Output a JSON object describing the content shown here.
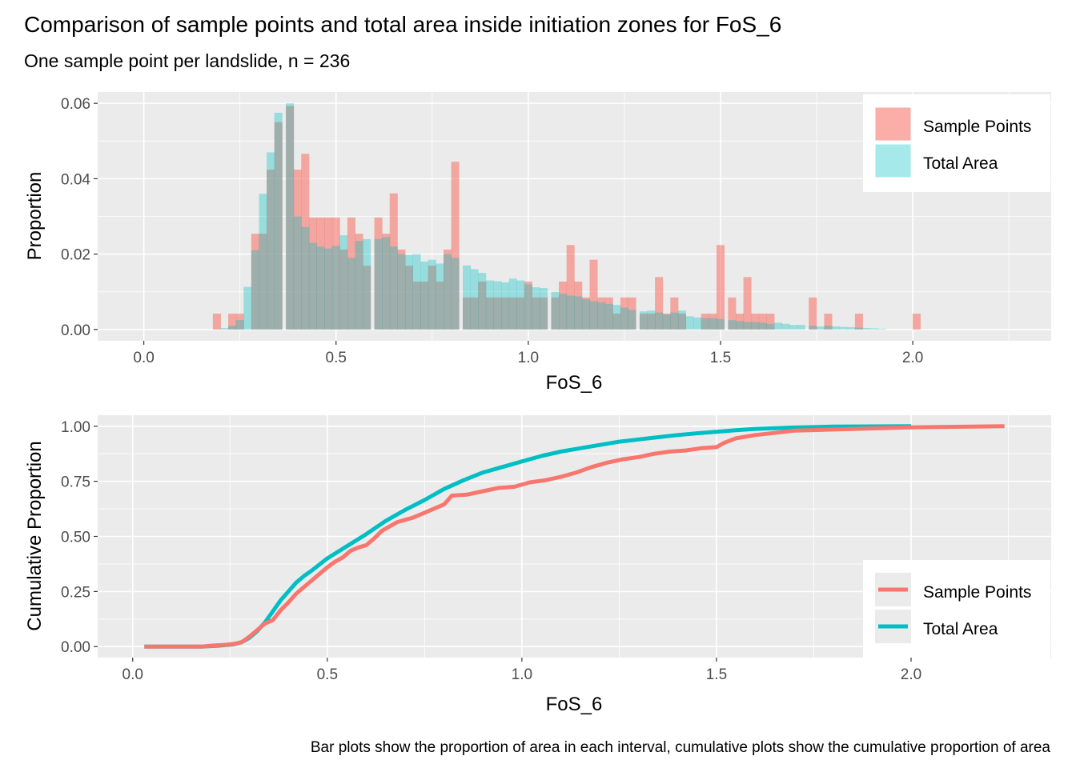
{
  "title": "Comparison of sample points and total area inside initiation zones for FoS_6",
  "subtitle": "One sample point per landslide, n = 236",
  "caption": "Bar plots show the proportion of area in each interval, cumulative plots show the cumulative proportion of area",
  "colors": {
    "sample_points": "#F8766D",
    "total_area": "#00BFC4",
    "panel_bg": "#EBEBEB"
  },
  "chart_data": [
    {
      "type": "bar",
      "id": "histogram",
      "xlabel": "FoS_6",
      "ylabel": "Proportion",
      "xlim": [
        -0.12,
        2.36
      ],
      "ylim": [
        -0.003,
        0.063
      ],
      "x_ticks": [
        0.0,
        0.5,
        1.0,
        1.5,
        2.0
      ],
      "x_tick_labels": [
        "0.0",
        "0.5",
        "1.0",
        "1.5",
        "2.0"
      ],
      "y_ticks": [
        0.0,
        0.02,
        0.04,
        0.06
      ],
      "y_tick_labels": [
        "0.00",
        "0.02",
        "0.04",
        "0.06"
      ],
      "grid": true,
      "legend_position": "top-right",
      "bin_width": 0.0209,
      "series": [
        {
          "name": "Sample Points",
          "color_key": "sample_points",
          "x": [
            0.19,
            0.23,
            0.25,
            0.29,
            0.31,
            0.33,
            0.35,
            0.38,
            0.4,
            0.42,
            0.44,
            0.46,
            0.48,
            0.5,
            0.52,
            0.54,
            0.56,
            0.58,
            0.61,
            0.63,
            0.65,
            0.67,
            0.69,
            0.71,
            0.73,
            0.75,
            0.77,
            0.79,
            0.81,
            0.84,
            0.86,
            0.88,
            0.9,
            0.92,
            0.94,
            0.96,
            0.98,
            1.0,
            1.02,
            1.04,
            1.07,
            1.09,
            1.11,
            1.13,
            1.15,
            1.17,
            1.19,
            1.21,
            1.23,
            1.25,
            1.27,
            1.3,
            1.32,
            1.34,
            1.36,
            1.38,
            1.4,
            1.46,
            1.48,
            1.5,
            1.53,
            1.55,
            1.57,
            1.59,
            1.61,
            1.63,
            1.74,
            1.78,
            1.86,
            2.01
          ],
          "values": [
            0.0042,
            0.0042,
            0.0042,
            0.0254,
            0.0254,
            0.0424,
            0.055,
            0.0593,
            0.0424,
            0.0466,
            0.0297,
            0.0297,
            0.0297,
            0.0297,
            0.0212,
            0.0297,
            0.0254,
            0.0169,
            0.0297,
            0.0254,
            0.0361,
            0.0212,
            0.0169,
            0.0127,
            0.0127,
            0.0169,
            0.0127,
            0.0212,
            0.0445,
            0.0085,
            0.0085,
            0.0127,
            0.0085,
            0.0085,
            0.0085,
            0.0085,
            0.0085,
            0.0127,
            0.0085,
            0.0085,
            0.0085,
            0.0127,
            0.0224,
            0.0127,
            0.0085,
            0.0185,
            0.0085,
            0.0085,
            0.0042,
            0.0085,
            0.0085,
            0.0042,
            0.0042,
            0.0139,
            0.0042,
            0.0085,
            0.0042,
            0.0042,
            0.0042,
            0.0224,
            0.0085,
            0.0042,
            0.0139,
            0.0042,
            0.0042,
            0.0042,
            0.0085,
            0.0042,
            0.0042,
            0.0042
          ]
        },
        {
          "name": "Total Area",
          "color_key": "total_area",
          "x": [
            0.21,
            0.23,
            0.25,
            0.27,
            0.29,
            0.31,
            0.33,
            0.35,
            0.38,
            0.4,
            0.42,
            0.44,
            0.46,
            0.48,
            0.5,
            0.52,
            0.54,
            0.56,
            0.58,
            0.61,
            0.63,
            0.65,
            0.67,
            0.69,
            0.71,
            0.73,
            0.75,
            0.77,
            0.79,
            0.81,
            0.84,
            0.86,
            0.88,
            0.9,
            0.92,
            0.94,
            0.96,
            0.98,
            1.0,
            1.02,
            1.04,
            1.07,
            1.09,
            1.11,
            1.13,
            1.15,
            1.17,
            1.19,
            1.21,
            1.23,
            1.25,
            1.27,
            1.3,
            1.32,
            1.34,
            1.36,
            1.38,
            1.4,
            1.42,
            1.44,
            1.46,
            1.48,
            1.5,
            1.53,
            1.55,
            1.57,
            1.59,
            1.61,
            1.63,
            1.65,
            1.67,
            1.69,
            1.71,
            1.74,
            1.76,
            1.78,
            1.8,
            1.82,
            1.84,
            1.86,
            1.88,
            1.9,
            1.92
          ],
          "values": [
            0.0004,
            0.001,
            0.0025,
            0.0113,
            0.021,
            0.036,
            0.047,
            0.0575,
            0.06,
            0.03,
            0.0272,
            0.023,
            0.022,
            0.0215,
            0.0222,
            0.025,
            0.019,
            0.0235,
            0.024,
            0.024,
            0.0245,
            0.022,
            0.02,
            0.0198,
            0.02,
            0.018,
            0.0185,
            0.0175,
            0.02,
            0.019,
            0.017,
            0.016,
            0.015,
            0.013,
            0.0128,
            0.0125,
            0.0135,
            0.013,
            0.012,
            0.0112,
            0.011,
            0.01,
            0.0095,
            0.009,
            0.0088,
            0.008,
            0.0075,
            0.0072,
            0.0068,
            0.0065,
            0.0058,
            0.0052,
            0.0048,
            0.005,
            0.0045,
            0.004,
            0.0045,
            0.005,
            0.0035,
            0.0032,
            0.003,
            0.003,
            0.0028,
            0.0025,
            0.0022,
            0.002,
            0.002,
            0.0018,
            0.0015,
            0.0018,
            0.0015,
            0.0012,
            0.0012,
            0.001,
            0.0008,
            0.001,
            0.0008,
            0.0007,
            0.0006,
            0.0005,
            0.0004,
            0.0003,
            0.0002
          ]
        }
      ]
    },
    {
      "type": "line",
      "id": "cumulative",
      "xlabel": "FoS_6",
      "ylabel": "Cumulative Proportion",
      "xlim": [
        -0.09,
        2.36
      ],
      "ylim": [
        -0.05,
        1.05
      ],
      "x_ticks": [
        0.0,
        0.5,
        1.0,
        1.5,
        2.0
      ],
      "x_tick_labels": [
        "0.0",
        "0.5",
        "1.0",
        "1.5",
        "2.0"
      ],
      "y_ticks": [
        0.0,
        0.25,
        0.5,
        0.75,
        1.0
      ],
      "y_tick_labels": [
        "0.00",
        "0.25",
        "0.50",
        "0.75",
        "1.00"
      ],
      "grid": true,
      "legend_position": "bottom-right",
      "series": [
        {
          "name": "Sample Points",
          "color_key": "sample_points",
          "x": [
            0.03,
            0.1,
            0.18,
            0.2,
            0.24,
            0.26,
            0.28,
            0.3,
            0.32,
            0.34,
            0.36,
            0.38,
            0.4,
            0.42,
            0.44,
            0.46,
            0.48,
            0.5,
            0.52,
            0.54,
            0.56,
            0.58,
            0.6,
            0.62,
            0.64,
            0.66,
            0.68,
            0.7,
            0.72,
            0.74,
            0.76,
            0.78,
            0.8,
            0.82,
            0.86,
            0.9,
            0.94,
            0.98,
            1.02,
            1.06,
            1.1,
            1.14,
            1.18,
            1.22,
            1.26,
            1.3,
            1.34,
            1.38,
            1.42,
            1.46,
            1.5,
            1.52,
            1.55,
            1.6,
            1.7,
            1.8,
            1.9,
            2.0,
            2.24
          ],
          "values": [
            0.0,
            0.0,
            0.0,
            0.004,
            0.008,
            0.012,
            0.02,
            0.045,
            0.075,
            0.105,
            0.12,
            0.165,
            0.2,
            0.24,
            0.27,
            0.3,
            0.33,
            0.36,
            0.385,
            0.405,
            0.435,
            0.45,
            0.46,
            0.49,
            0.525,
            0.545,
            0.565,
            0.575,
            0.585,
            0.6,
            0.615,
            0.63,
            0.645,
            0.685,
            0.69,
            0.705,
            0.72,
            0.725,
            0.745,
            0.755,
            0.77,
            0.79,
            0.815,
            0.835,
            0.85,
            0.86,
            0.875,
            0.885,
            0.89,
            0.9,
            0.905,
            0.925,
            0.945,
            0.96,
            0.98,
            0.985,
            0.99,
            0.995,
            1.0
          ]
        },
        {
          "name": "Total Area",
          "color_key": "total_area",
          "x": [
            0.03,
            0.18,
            0.22,
            0.26,
            0.28,
            0.3,
            0.32,
            0.34,
            0.36,
            0.38,
            0.4,
            0.42,
            0.44,
            0.46,
            0.5,
            0.55,
            0.6,
            0.65,
            0.7,
            0.75,
            0.8,
            0.85,
            0.9,
            0.95,
            1.0,
            1.05,
            1.1,
            1.15,
            1.2,
            1.25,
            1.3,
            1.35,
            1.4,
            1.45,
            1.5,
            1.55,
            1.6,
            1.7,
            1.8,
            1.9,
            2.0
          ],
          "values": [
            0.0,
            0.0,
            0.004,
            0.01,
            0.02,
            0.04,
            0.07,
            0.11,
            0.16,
            0.21,
            0.25,
            0.29,
            0.32,
            0.345,
            0.4,
            0.455,
            0.51,
            0.57,
            0.62,
            0.665,
            0.715,
            0.755,
            0.79,
            0.815,
            0.84,
            0.865,
            0.885,
            0.9,
            0.915,
            0.93,
            0.94,
            0.95,
            0.96,
            0.968,
            0.975,
            0.982,
            0.988,
            0.994,
            0.998,
            0.999,
            1.0
          ]
        }
      ]
    }
  ]
}
